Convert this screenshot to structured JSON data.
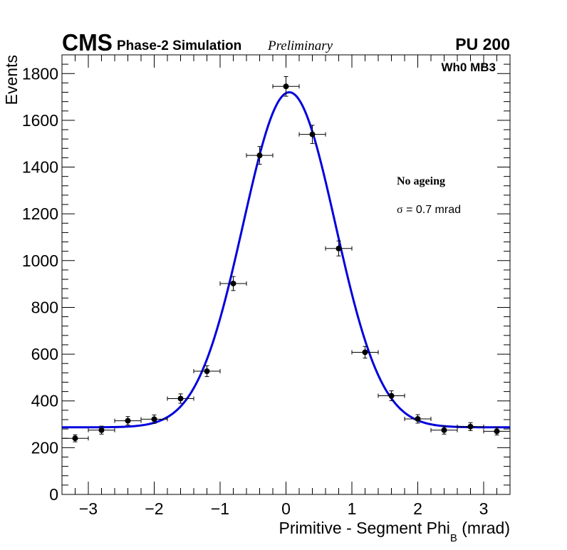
{
  "header": {
    "experiment": "CMS",
    "simulation_label": "Phase-2 Simulation",
    "status": "Preliminary",
    "pileup": "PU 200"
  },
  "annotations": {
    "chamber": "Wh0 MB3",
    "condition": "No ageing",
    "sigma_symbol": "σ",
    "sigma_text": " = 0.7 mrad"
  },
  "colors": {
    "fit": "#0000dd",
    "points": "#000000",
    "axes": "#000000"
  },
  "chart_data": {
    "type": "scatter",
    "title": "",
    "xlabel_main": "Primitive - Segment Phi",
    "xlabel_sub": "B",
    "xlabel_unit": " (mrad)",
    "ylabel": "Events",
    "xlim": [
      -3.4,
      3.4
    ],
    "ylim": [
      0,
      1800
    ],
    "ytop": 1880,
    "xticks": [
      -3,
      -2,
      -1,
      0,
      1,
      2,
      3
    ],
    "xtick_labels": [
      "−3",
      "−2",
      "−1",
      "0",
      "1",
      "2",
      "3"
    ],
    "yticks": [
      0,
      200,
      400,
      600,
      800,
      1000,
      1200,
      1400,
      1600,
      1800
    ],
    "ytick_labels": [
      "0",
      "200",
      "400",
      "600",
      "800",
      "1000",
      "1200",
      "1400",
      "1600",
      "1800"
    ],
    "bin_half_width": 0.2,
    "series": [
      {
        "name": "data",
        "x": [
          -3.2,
          -2.8,
          -2.4,
          -2.0,
          -1.6,
          -1.2,
          -0.8,
          -0.4,
          0.0,
          0.4,
          0.8,
          1.2,
          1.6,
          2.0,
          2.4,
          2.8,
          3.2
        ],
        "y": [
          240,
          275,
          315,
          322,
          410,
          527,
          902,
          1450,
          1745,
          1540,
          1052,
          608,
          422,
          323,
          275,
          290,
          270
        ],
        "yerr": [
          15,
          17,
          18,
          18,
          20,
          23,
          30,
          38,
          42,
          39,
          32,
          25,
          21,
          18,
          17,
          17,
          16
        ]
      }
    ],
    "fit": {
      "name": "gaussian fit",
      "function": "gaussian + constant",
      "constant": 287,
      "amplitude": 1433,
      "mean": 0.05,
      "sigma": 0.7
    }
  }
}
